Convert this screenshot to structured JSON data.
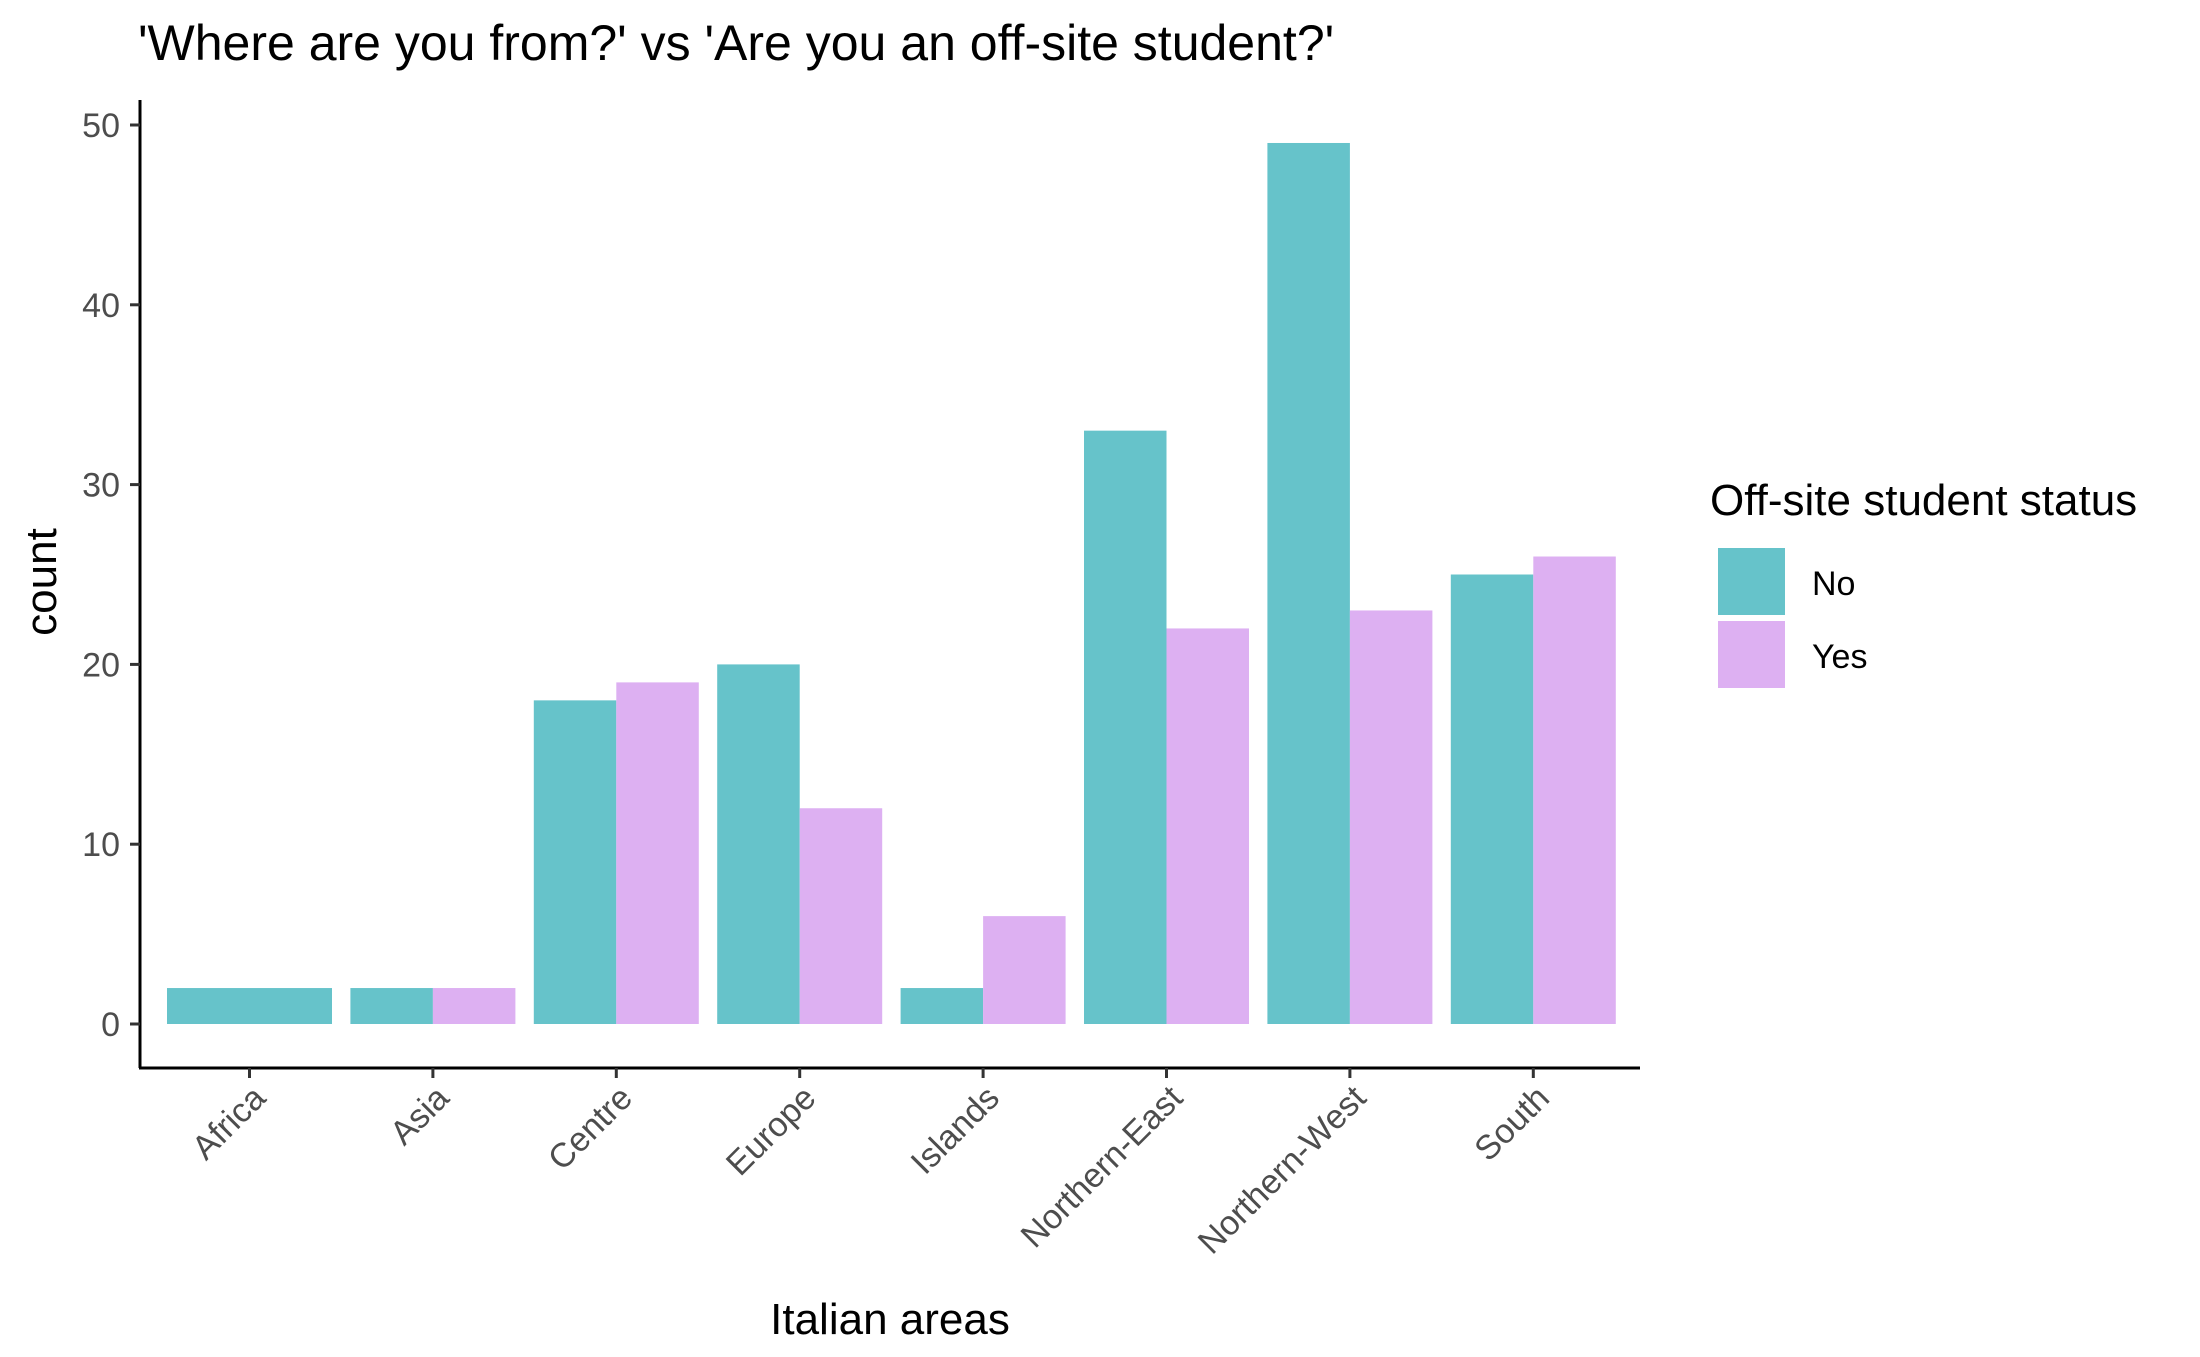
{
  "chart_data": {
    "type": "bar",
    "title": "'Where are you from?' vs 'Are you an off-site student?'",
    "xlabel": "Italian areas",
    "ylabel": "count",
    "ylim": [
      0,
      52
    ],
    "yticks": [
      0,
      10,
      20,
      30,
      40,
      50
    ],
    "categories": [
      "Africa",
      "Asia",
      "Centre",
      "Europe",
      "Islands",
      "Northern-East",
      "Northern-West",
      "South"
    ],
    "series": [
      {
        "name": "No",
        "color": "#66C3CA",
        "values": [
          2,
          2,
          18,
          20,
          2,
          33,
          49,
          25
        ]
      },
      {
        "name": "Yes",
        "color": "#DDB0F2",
        "values": [
          null,
          2,
          19,
          12,
          6,
          22,
          23,
          26
        ]
      }
    ],
    "legend": {
      "title": "Off-site student status",
      "position": "right"
    },
    "grid": false
  }
}
